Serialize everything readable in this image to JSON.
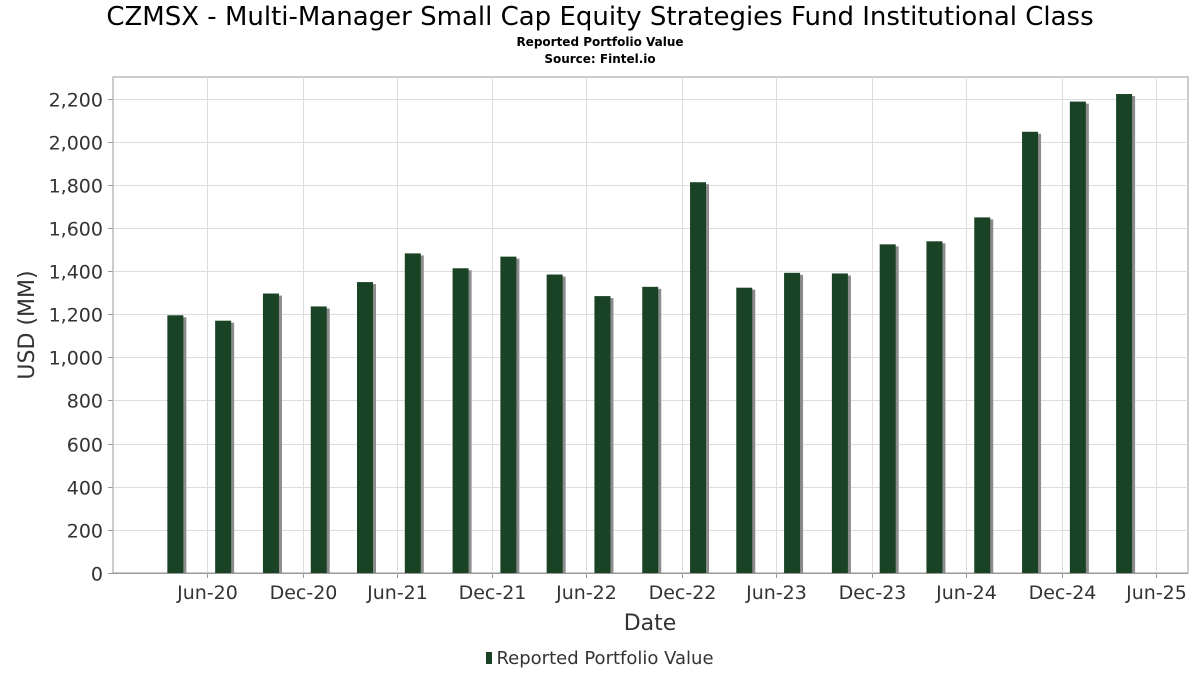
{
  "chart_data": {
    "type": "bar",
    "title": "CZMSX - Multi-Manager Small Cap Equity Strategies Fund Institutional Class",
    "subtitle": "Reported Portfolio Value",
    "source": "Source: Fintel.io",
    "xlabel": "Date",
    "ylabel": "USD (MM)",
    "ylim": [
      0,
      2300
    ],
    "yticks": [
      0,
      200,
      400,
      600,
      800,
      1000,
      1200,
      1400,
      1600,
      1800,
      2000,
      2200
    ],
    "ytick_labels": [
      "0",
      "200",
      "400",
      "600",
      "800",
      "1,000",
      "1,200",
      "1,400",
      "1,600",
      "1,800",
      "2,000",
      "2,200"
    ],
    "xlim": [
      "2020-01-01",
      "2025-08-31"
    ],
    "xticks": [
      {
        "date": "2020-06-30",
        "label": "Jun-20"
      },
      {
        "date": "2020-12-31",
        "label": "Dec-20"
      },
      {
        "date": "2021-06-30",
        "label": "Jun-21"
      },
      {
        "date": "2021-12-31",
        "label": "Dec-21"
      },
      {
        "date": "2022-06-30",
        "label": "Jun-22"
      },
      {
        "date": "2022-12-31",
        "label": "Dec-22"
      },
      {
        "date": "2023-06-30",
        "label": "Jun-23"
      },
      {
        "date": "2023-12-31",
        "label": "Dec-23"
      },
      {
        "date": "2024-06-30",
        "label": "Jun-24"
      },
      {
        "date": "2024-12-31",
        "label": "Dec-24"
      },
      {
        "date": "2025-06-30",
        "label": "Jun-25"
      }
    ],
    "grid": true,
    "legend_position": "bottom-center",
    "series": [
      {
        "name": "Reported Portfolio Value",
        "color": "#1a4225",
        "shadow_color": "#8c8c8c",
        "x": [
          "2020-04-30",
          "2020-07-31",
          "2020-10-31",
          "2021-01-31",
          "2021-04-30",
          "2021-07-31",
          "2021-10-31",
          "2022-01-31",
          "2022-04-30",
          "2022-07-31",
          "2022-10-31",
          "2023-01-31",
          "2023-04-30",
          "2023-07-31",
          "2023-10-31",
          "2024-01-31",
          "2024-04-30",
          "2024-07-31",
          "2024-10-31",
          "2025-01-31",
          "2025-04-30"
        ],
        "values": [
          1195,
          1170,
          1296,
          1236,
          1349,
          1482,
          1413,
          1467,
          1384,
          1284,
          1327,
          1812,
          1323,
          1392,
          1389,
          1524,
          1538,
          1649,
          2046,
          2186,
          2221
        ]
      }
    ]
  }
}
